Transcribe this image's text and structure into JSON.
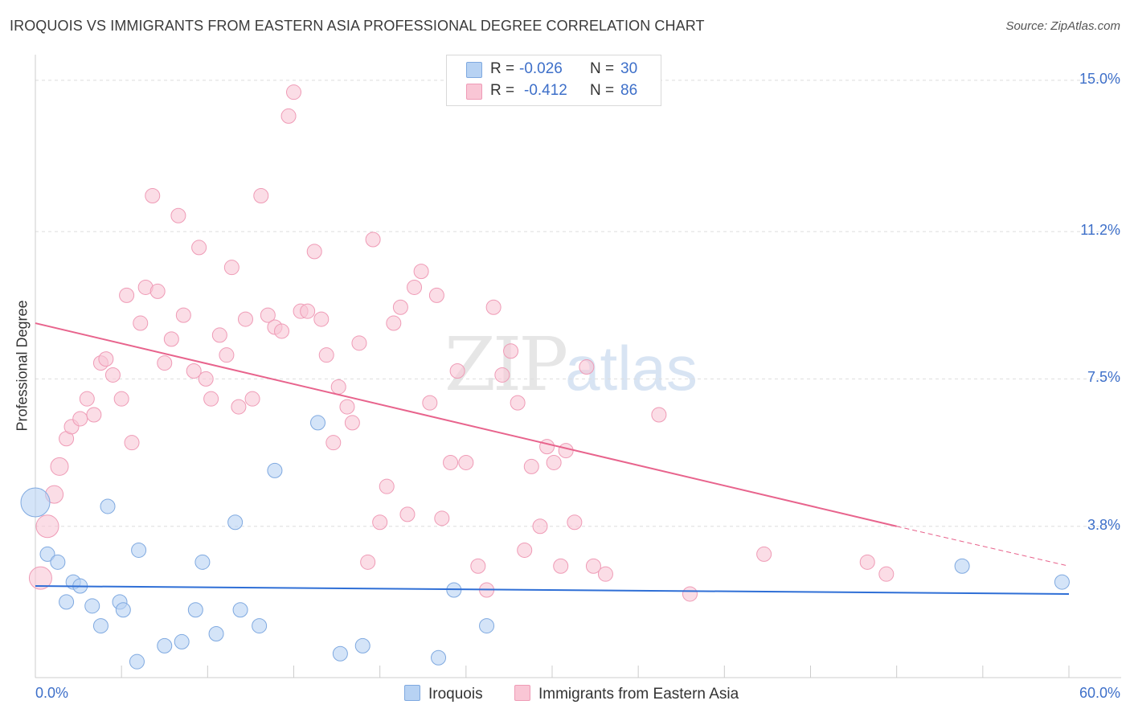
{
  "title": "IROQUOIS VS IMMIGRANTS FROM EASTERN ASIA PROFESSIONAL DEGREE CORRELATION CHART",
  "source": "Source: ZipAtlas.com",
  "watermark": {
    "zip": "ZIP",
    "atlas": "atlas"
  },
  "legend": {
    "rows": [
      {
        "r_label": "R =",
        "r_value": "-0.026",
        "n_label": "N =",
        "n_value": "30",
        "color": "#b7d2f3"
      },
      {
        "r_label": "R =",
        "r_value": "-0.412",
        "n_label": "N =",
        "n_value": "86",
        "color": "#f9c6d5"
      }
    ]
  },
  "chart_data": {
    "type": "scatter",
    "title": "IROQUOIS VS IMMIGRANTS FROM EASTERN ASIA PROFESSIONAL DEGREE CORRELATION CHART",
    "xlabel": "",
    "ylabel": "Professional Degree",
    "xlim": [
      0,
      60
    ],
    "ylim": [
      0,
      15.4
    ],
    "x_tick_labels": [
      "0.0%",
      "60.0%"
    ],
    "y_ticks": [
      3.8,
      7.5,
      11.2,
      15.0
    ],
    "y_tick_labels": [
      "3.8%",
      "7.5%",
      "11.2%",
      "15.0%"
    ],
    "grid": true,
    "series": [
      {
        "name": "Iroquois",
        "color": "#7fa9e0",
        "fill": "#b7d2f3",
        "trend": {
          "x": [
            0,
            60
          ],
          "y": [
            2.3,
            2.1
          ],
          "color": "#2f6fd6"
        },
        "points": [
          [
            0.0,
            4.4,
            18
          ],
          [
            0.7,
            3.1,
            9
          ],
          [
            1.3,
            2.9,
            9
          ],
          [
            1.8,
            1.9,
            9
          ],
          [
            2.2,
            2.4,
            9
          ],
          [
            2.6,
            2.3,
            9
          ],
          [
            3.3,
            1.8,
            9
          ],
          [
            3.8,
            1.3,
            9
          ],
          [
            4.2,
            4.3,
            9
          ],
          [
            4.9,
            1.9,
            9
          ],
          [
            5.1,
            1.7,
            9
          ],
          [
            5.9,
            0.4,
            9
          ],
          [
            6.0,
            3.2,
            9
          ],
          [
            7.5,
            0.8,
            9
          ],
          [
            8.5,
            0.9,
            9
          ],
          [
            9.3,
            1.7,
            9
          ],
          [
            9.7,
            2.9,
            9
          ],
          [
            10.5,
            1.1,
            9
          ],
          [
            11.6,
            3.9,
            9
          ],
          [
            11.9,
            1.7,
            9
          ],
          [
            13.0,
            1.3,
            9
          ],
          [
            13.9,
            5.2,
            9
          ],
          [
            16.4,
            6.4,
            9
          ],
          [
            17.7,
            0.6,
            9
          ],
          [
            19.0,
            0.8,
            9
          ],
          [
            23.4,
            0.5,
            9
          ],
          [
            24.3,
            2.2,
            9
          ],
          [
            26.2,
            1.3,
            9
          ],
          [
            53.8,
            2.8,
            9
          ],
          [
            59.6,
            2.4,
            9
          ]
        ]
      },
      {
        "name": "Immigrants from Eastern Asia",
        "color": "#ef9bb6",
        "fill": "#f9c6d5",
        "trend": {
          "x": [
            0,
            50
          ],
          "y": [
            8.9,
            3.8
          ],
          "color": "#e8648d",
          "dash_x": [
            50,
            60
          ],
          "dash_y": [
            3.8,
            2.8
          ]
        },
        "points": [
          [
            0.3,
            2.5,
            14
          ],
          [
            0.7,
            3.8,
            14
          ],
          [
            1.1,
            4.6,
            11
          ],
          [
            1.4,
            5.3,
            11
          ],
          [
            1.8,
            6.0,
            9
          ],
          [
            2.1,
            6.3,
            9
          ],
          [
            2.6,
            6.5,
            9
          ],
          [
            3.0,
            7.0,
            9
          ],
          [
            3.4,
            6.6,
            9
          ],
          [
            3.8,
            7.9,
            9
          ],
          [
            4.1,
            8.0,
            9
          ],
          [
            4.5,
            7.6,
            9
          ],
          [
            5.0,
            7.0,
            9
          ],
          [
            5.3,
            9.6,
            9
          ],
          [
            5.6,
            5.9,
            9
          ],
          [
            6.1,
            8.9,
            9
          ],
          [
            6.4,
            9.8,
            9
          ],
          [
            6.8,
            12.1,
            9
          ],
          [
            7.1,
            9.7,
            9
          ],
          [
            7.5,
            7.9,
            9
          ],
          [
            7.9,
            8.5,
            9
          ],
          [
            8.3,
            11.6,
            9
          ],
          [
            8.6,
            9.1,
            9
          ],
          [
            9.2,
            7.7,
            9
          ],
          [
            9.5,
            10.8,
            9
          ],
          [
            9.9,
            7.5,
            9
          ],
          [
            10.2,
            7.0,
            9
          ],
          [
            10.7,
            8.6,
            9
          ],
          [
            11.1,
            8.1,
            9
          ],
          [
            11.4,
            10.3,
            9
          ],
          [
            11.8,
            6.8,
            9
          ],
          [
            12.2,
            9.0,
            9
          ],
          [
            12.6,
            7.0,
            9
          ],
          [
            13.1,
            12.1,
            9
          ],
          [
            13.5,
            9.1,
            9
          ],
          [
            13.9,
            8.8,
            9
          ],
          [
            14.3,
            8.7,
            9
          ],
          [
            14.7,
            14.1,
            9
          ],
          [
            15.0,
            14.7,
            9
          ],
          [
            15.4,
            9.2,
            9
          ],
          [
            15.8,
            9.2,
            9
          ],
          [
            16.2,
            10.7,
            9
          ],
          [
            16.6,
            9.0,
            9
          ],
          [
            16.9,
            8.1,
            9
          ],
          [
            17.3,
            5.9,
            9
          ],
          [
            17.6,
            7.3,
            9
          ],
          [
            18.1,
            6.8,
            9
          ],
          [
            18.4,
            6.4,
            9
          ],
          [
            18.8,
            8.4,
            9
          ],
          [
            19.3,
            2.9,
            9
          ],
          [
            19.6,
            11.0,
            9
          ],
          [
            20.0,
            3.9,
            9
          ],
          [
            20.4,
            4.8,
            9
          ],
          [
            20.8,
            8.9,
            9
          ],
          [
            21.2,
            9.3,
            9
          ],
          [
            21.6,
            4.1,
            9
          ],
          [
            22.0,
            9.8,
            9
          ],
          [
            22.4,
            10.2,
            9
          ],
          [
            22.9,
            6.9,
            9
          ],
          [
            23.3,
            9.6,
            9
          ],
          [
            23.6,
            4.0,
            9
          ],
          [
            24.1,
            5.4,
            9
          ],
          [
            24.5,
            7.7,
            9
          ],
          [
            25.0,
            5.4,
            9
          ],
          [
            25.7,
            2.8,
            9
          ],
          [
            26.2,
            2.2,
            9
          ],
          [
            26.6,
            9.3,
            9
          ],
          [
            27.1,
            7.6,
            9
          ],
          [
            27.6,
            8.2,
            9
          ],
          [
            28.0,
            6.9,
            9
          ],
          [
            28.4,
            3.2,
            9
          ],
          [
            28.8,
            5.3,
            9
          ],
          [
            29.3,
            3.8,
            9
          ],
          [
            29.7,
            5.8,
            9
          ],
          [
            30.1,
            5.4,
            9
          ],
          [
            30.5,
            2.8,
            9
          ],
          [
            30.8,
            5.7,
            9
          ],
          [
            31.3,
            3.9,
            9
          ],
          [
            32.0,
            7.8,
            9
          ],
          [
            32.4,
            2.8,
            9
          ],
          [
            33.1,
            2.6,
            9
          ],
          [
            36.2,
            6.6,
            9
          ],
          [
            38.0,
            2.1,
            9
          ],
          [
            42.3,
            3.1,
            9
          ],
          [
            48.3,
            2.9,
            9
          ],
          [
            49.4,
            2.6,
            9
          ]
        ]
      }
    ]
  },
  "bottom_legend": [
    "Iroquois",
    "Immigrants from Eastern Asia"
  ]
}
